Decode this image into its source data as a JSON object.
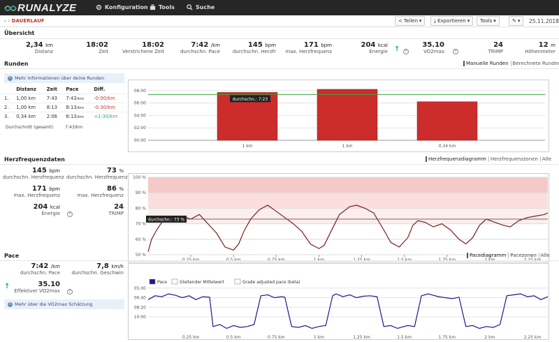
{
  "app": {
    "logo": "RUNALYZE",
    "nav": [
      {
        "label": "Konfiguration",
        "icon": "gear-icon"
      },
      {
        "label": "Tools",
        "icon": "briefcase-icon"
      },
      {
        "label": "Suche",
        "icon": "search-icon"
      }
    ]
  },
  "titlebar": {
    "breadcrumb": "DAUERLAUF",
    "buttons": {
      "share": "Teilen",
      "export": "Exportieren",
      "tools": "Tools"
    },
    "date": "25.11.2018"
  },
  "overview": {
    "title": "Übersicht",
    "stats": [
      {
        "value": "2,34",
        "unit": "km",
        "label": "Distanz"
      },
      {
        "value": "18:02",
        "unit": "",
        "label": "Zeit"
      },
      {
        "value": "18:02",
        "unit": "",
        "label": "Verstrichene Zeit"
      },
      {
        "value": "7:42",
        "unit": "/km",
        "label": "durchschn. Pace"
      },
      {
        "value": "145",
        "unit": "bpm",
        "label": "durchschn. Herzfr"
      },
      {
        "value": "171",
        "unit": "bpm",
        "label": "max. Herzfrequenz"
      },
      {
        "value": "204",
        "unit": "kcal",
        "label": "Energie"
      },
      {
        "value": "35.10",
        "unit": "",
        "label": "VO2max"
      },
      {
        "value": "24",
        "unit": "",
        "label": "TRIMP"
      },
      {
        "value": "12",
        "unit": "m",
        "label": "Höhenmeter"
      }
    ]
  },
  "laps": {
    "title": "Runden",
    "tabs": [
      "Manuelle Runden",
      "Berechnete Runden"
    ],
    "info": "Mehr Informationen über deine Runden",
    "headers": [
      "Distanz",
      "Zeit",
      "Pace",
      "Diff."
    ],
    "rows": [
      {
        "n": "1.",
        "dist": "1,00 km",
        "time": "7:43",
        "pace": "7:43",
        "pace_unit": "/km",
        "diff": "-0:00/km"
      },
      {
        "n": "2.",
        "dist": "1,00 km",
        "time": "8:13",
        "pace": "8:13",
        "pace_unit": "/km",
        "diff": "-0:30/km"
      },
      {
        "n": "3.",
        "dist": "0,34 km",
        "time": "2:06",
        "pace": "6:13",
        "pace_unit": "/km",
        "diff": "+1:30/km"
      }
    ],
    "avg_label": "Durchschnitt (gesamt):",
    "avg_value": "7:43/km",
    "chart_data": {
      "type": "bar",
      "categories": [
        "1 km",
        "1 km",
        "0.34 km"
      ],
      "values": [
        463,
        493,
        373
      ],
      "ylim": [
        0,
        540
      ],
      "yticks": [
        "00:00",
        "02:00",
        "04:00",
        "06:00",
        "08:00"
      ],
      "avg_value": 443,
      "avg_label": "durchschn.: 7:23",
      "bar_color": "#cc2c2c",
      "avg_color": "#3aa53a"
    }
  },
  "hr": {
    "title": "Herzfrequenzdaten",
    "tabs": [
      "Herzfrequenzdiagramm",
      "Herzfrequenzzonen",
      "Alle"
    ],
    "stats": [
      {
        "value": "145",
        "unit": "bpm",
        "label": "durchschn. Herzfrequenz"
      },
      {
        "value": "73",
        "unit": "%",
        "label": "durchschn. Herzfrequenz"
      },
      {
        "value": "171",
        "unit": "bpm",
        "label": "max. Herzfrequenz"
      },
      {
        "value": "86",
        "unit": "%",
        "label": "max. Herzfrequenz"
      },
      {
        "value": "204",
        "unit": "kcal",
        "label": "Energie"
      },
      {
        "value": "24",
        "unit": "",
        "label": "TRIMP"
      }
    ],
    "chart_data": {
      "type": "line",
      "x": [
        0,
        0.02,
        0.05,
        0.08,
        0.12,
        0.16,
        0.2,
        0.25,
        0.3,
        0.35,
        0.4,
        0.45,
        0.5,
        0.53,
        0.56,
        0.6,
        0.65,
        0.7,
        0.75,
        0.8,
        0.85,
        0.9,
        0.95,
        1.0,
        1.03,
        1.07,
        1.12,
        1.18,
        1.22,
        1.27,
        1.32,
        1.38,
        1.42,
        1.47,
        1.52,
        1.55,
        1.58,
        1.62,
        1.67,
        1.72,
        1.77,
        1.82,
        1.86,
        1.9,
        1.94,
        1.98,
        2.03,
        2.08,
        2.12,
        2.17,
        2.22,
        2.27,
        2.32,
        2.34
      ],
      "values": [
        52,
        60,
        66,
        71,
        73,
        74,
        75,
        73,
        76,
        70,
        64,
        55,
        53,
        57,
        65,
        73,
        79,
        82,
        78,
        74,
        70,
        65,
        57,
        54,
        56,
        65,
        76,
        81,
        82,
        80,
        77,
        66,
        58,
        55,
        61,
        69,
        72,
        71,
        68,
        70,
        66,
        60,
        57,
        61,
        69,
        73,
        71,
        69,
        68,
        72,
        74,
        75,
        76,
        77
      ],
      "xticks": [
        "0.25 km",
        "0.5 km",
        "0.75 km",
        "1 km",
        "1.25 km",
        "1.5 km",
        "1.75 km",
        "2 km",
        "2.25 km"
      ],
      "xtick_values": [
        0.25,
        0.5,
        0.75,
        1.0,
        1.25,
        1.5,
        1.75,
        2.0,
        2.25
      ],
      "yticks": [
        "50 %",
        "60 %",
        "70 %",
        "80 %",
        "90 %",
        "100 %"
      ],
      "ylim": [
        50,
        100
      ],
      "xlim": [
        0,
        2.34
      ],
      "avg_value": 73,
      "avg_label": "durchschn.: 73 %",
      "line_color": "#7a1e1e",
      "zone_color": "#f6c9c9"
    }
  },
  "pace": {
    "title": "Pace",
    "tabs": [
      "Pacediagramm",
      "Pacezonen",
      "Alle"
    ],
    "stats": [
      {
        "value": "7:42",
        "unit": "/km",
        "label": "durchschn. Pace"
      },
      {
        "value": "7,8",
        "unit": "km/h",
        "label": "durchschn. Geschwin"
      }
    ],
    "vo2": {
      "value": "35.10",
      "label": "Effektiver VO2max"
    },
    "info": "Mehr über die VO2max Schätzung",
    "chart_data": {
      "type": "line",
      "legend": [
        "Pace",
        "Gleitender Mittelwert",
        "Grade adjusted pace (beta)"
      ],
      "x": [
        0,
        0.04,
        0.08,
        0.12,
        0.16,
        0.2,
        0.24,
        0.28,
        0.32,
        0.36,
        0.38,
        0.42,
        0.46,
        0.5,
        0.54,
        0.58,
        0.62,
        0.66,
        0.7,
        0.74,
        0.78,
        0.8,
        0.84,
        0.88,
        0.92,
        0.96,
        1.0,
        1.04,
        1.08,
        1.1,
        1.14,
        1.18,
        1.22,
        1.26,
        1.3,
        1.34,
        1.38,
        1.42,
        1.46,
        1.48,
        1.52,
        1.56,
        1.6,
        1.64,
        1.66,
        1.7,
        1.74,
        1.78,
        1.82,
        1.86,
        1.9,
        1.94,
        1.98,
        2.02,
        2.06,
        2.1,
        2.14,
        2.18,
        2.22,
        2.26,
        2.3,
        2.34
      ],
      "values": [
        420,
        380,
        390,
        360,
        375,
        400,
        380,
        420,
        390,
        395,
        700,
        680,
        720,
        690,
        710,
        700,
        680,
        380,
        370,
        400,
        390,
        395,
        700,
        710,
        690,
        720,
        700,
        690,
        380,
        360,
        390,
        370,
        400,
        385,
        380,
        390,
        700,
        690,
        720,
        710,
        690,
        700,
        380,
        360,
        370,
        390,
        400,
        410,
        395,
        700,
        690,
        720,
        700,
        710,
        680,
        380,
        370,
        360,
        390,
        380,
        420,
        390
      ],
      "xticks": [
        "0.25 km",
        "0.5 km",
        "0.75 km",
        "1 km",
        "1.25 km",
        "1.5 km",
        "1.75 km",
        "2 km",
        "2.25 km"
      ],
      "xtick_values": [
        0.25,
        0.5,
        0.75,
        1.0,
        1.25,
        1.5,
        1.75,
        2.0,
        2.25
      ],
      "yticks": [
        "05:00",
        "06:40",
        "08:20",
        "10:00"
      ],
      "ytick_values": [
        300,
        400,
        500,
        600
      ],
      "ylim": [
        280,
        760
      ],
      "xlim": [
        0,
        2.34
      ],
      "line_color": "#1a1a8c"
    }
  }
}
